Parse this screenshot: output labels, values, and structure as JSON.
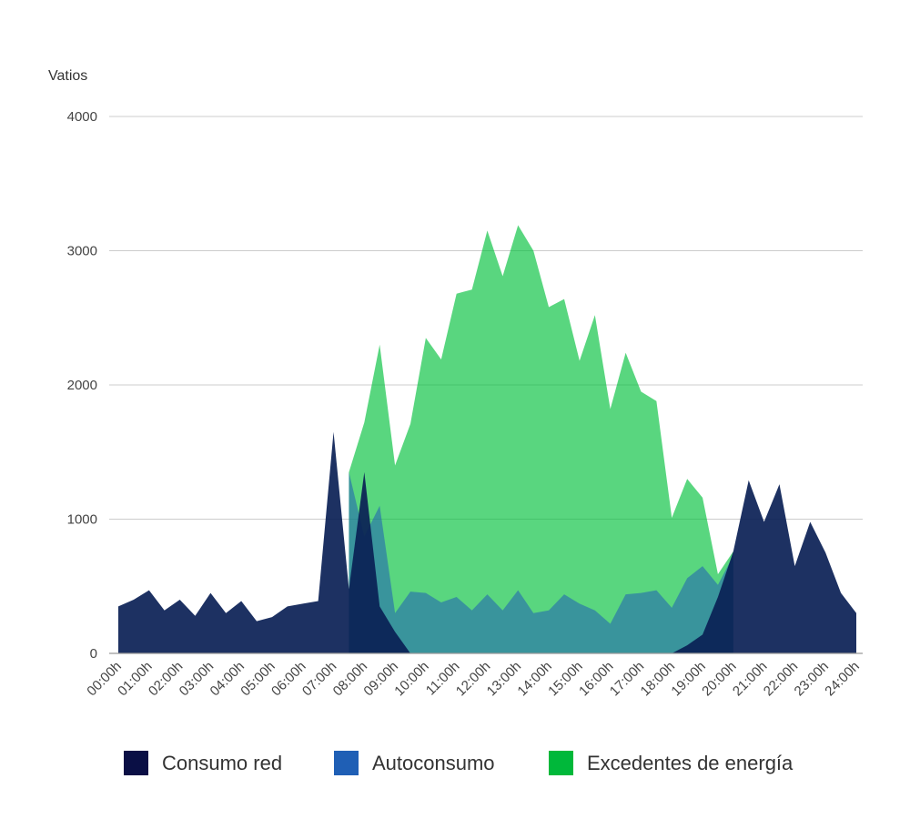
{
  "chart_data": {
    "type": "area",
    "ylabel": "Vatios",
    "ylim": [
      0,
      4000
    ],
    "yticks": [
      0,
      1000,
      2000,
      3000,
      4000
    ],
    "x_tick_labels": [
      "00:00h",
      "01:00h",
      "02:00h",
      "03:00h",
      "04:00h",
      "05:00h",
      "06:00h",
      "07:00h",
      "08:00h",
      "09:00h",
      "10:00h",
      "11:00h",
      "12:00h",
      "13:00h",
      "14:00h",
      "15:00h",
      "16:00h",
      "17:00h",
      "18:00h",
      "19:00h",
      "20:00h",
      "21:00h",
      "22:00h",
      "23:00h",
      "24:00h"
    ],
    "x_hours": [
      0,
      0.5,
      1,
      1.5,
      2,
      2.5,
      3,
      3.5,
      4,
      4.5,
      5,
      5.5,
      6,
      6.5,
      7,
      7.5,
      8,
      8.5,
      9,
      9.5,
      10,
      10.5,
      11,
      11.5,
      12,
      12.5,
      13,
      13.5,
      14,
      14.5,
      15,
      15.5,
      16,
      16.5,
      17,
      17.5,
      18,
      18.5,
      19,
      19.5,
      20,
      20.5,
      21,
      21.5,
      22,
      22.5,
      23,
      23.5,
      24
    ],
    "grid": true,
    "legend_position": "bottom",
    "series": [
      {
        "name": "Excedentes de energía",
        "color": "#00c03a",
        "opacity": 0.65,
        "values": [
          null,
          null,
          null,
          null,
          null,
          null,
          null,
          null,
          null,
          null,
          null,
          null,
          null,
          null,
          null,
          1350,
          1720,
          2300,
          1400,
          1710,
          2350,
          2190,
          2680,
          2710,
          3150,
          2810,
          3190,
          3000,
          2580,
          2640,
          2180,
          2520,
          1820,
          2240,
          1950,
          1880,
          1010,
          1300,
          1160,
          590,
          760,
          null,
          null,
          null,
          null,
          null,
          null,
          null,
          null
        ]
      },
      {
        "name": "Autoconsumo",
        "color": "#1f5fb5",
        "opacity": 0.55,
        "values": [
          null,
          null,
          null,
          null,
          null,
          null,
          null,
          null,
          null,
          null,
          null,
          null,
          null,
          null,
          null,
          1350,
          870,
          1100,
          300,
          460,
          450,
          380,
          420,
          320,
          440,
          320,
          470,
          300,
          320,
          440,
          370,
          320,
          220,
          440,
          450,
          470,
          340,
          560,
          650,
          510,
          730,
          null,
          null,
          null,
          null,
          null,
          null,
          null,
          null
        ]
      },
      {
        "name": "Consumo red",
        "color": "#0a1f55",
        "opacity": 0.92,
        "values": [
          350,
          400,
          470,
          320,
          400,
          280,
          450,
          300,
          390,
          240,
          270,
          350,
          370,
          390,
          1650,
          480,
          1350,
          350,
          160,
          0,
          0,
          0,
          0,
          0,
          0,
          0,
          0,
          0,
          0,
          0,
          0,
          0,
          0,
          0,
          0,
          0,
          0,
          60,
          140,
          420,
          760,
          1290,
          980,
          1260,
          650,
          980,
          750,
          450,
          300
        ]
      }
    ],
    "legend": [
      {
        "label": "Consumo red",
        "color": "#0a0f45"
      },
      {
        "label": "Autoconsumo",
        "color": "#1f5fb5"
      },
      {
        "label": "Excedentes de energía",
        "color": "#00b83a"
      }
    ]
  }
}
